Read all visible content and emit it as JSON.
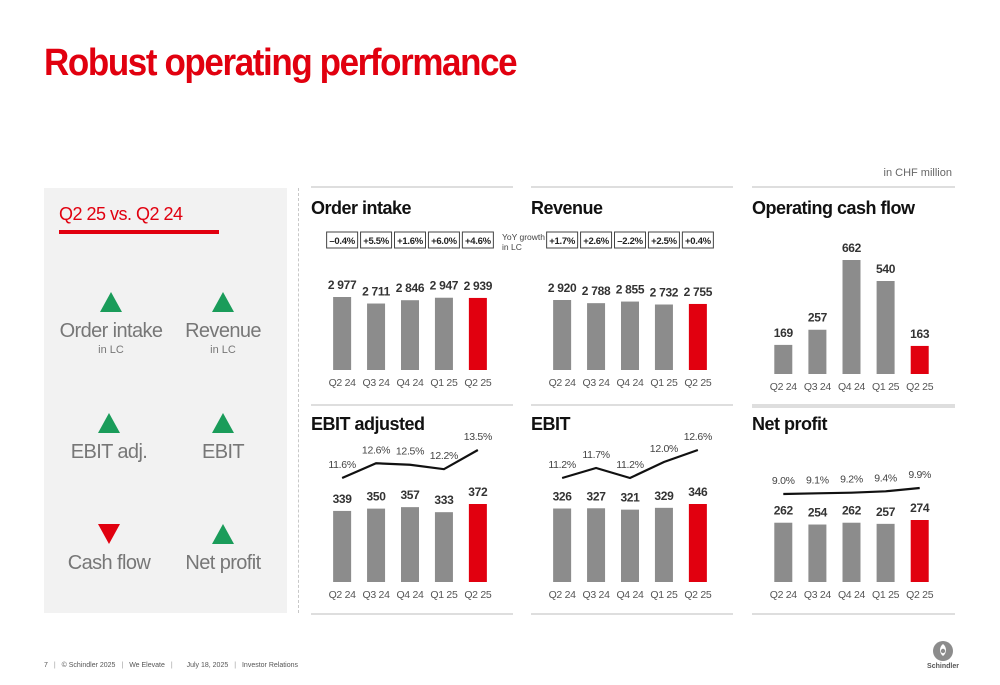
{
  "page": {
    "title": "Robust operating performance",
    "unit": "in CHF million",
    "footer": {
      "page_number": "7",
      "copyright": "© Schindler 2025",
      "tagline": "We Elevate",
      "date": "July 18, 2025",
      "department": "Investor Relations"
    },
    "logo_text": "Schindler"
  },
  "summary": {
    "heading": "Q2 25 vs. Q2 24",
    "kpis": [
      {
        "label": "Order intake",
        "sub": "in LC",
        "direction": "up"
      },
      {
        "label": "Revenue",
        "sub": "in LC",
        "direction": "up"
      },
      {
        "label": "EBIT adj.",
        "sub": "",
        "direction": "up"
      },
      {
        "label": "EBIT",
        "sub": "",
        "direction": "up"
      },
      {
        "label": "Cash flow",
        "sub": "",
        "direction": "down"
      },
      {
        "label": "Net profit",
        "sub": "",
        "direction": "up"
      }
    ],
    "colors": {
      "up": "#1a9c5a",
      "down": "#e1000f"
    }
  },
  "chart_data": [
    {
      "type": "bar",
      "title": "Order intake",
      "categories": [
        "Q2 24",
        "Q3 24",
        "Q4 24",
        "Q1 25",
        "Q2 25"
      ],
      "values": [
        2977,
        2711,
        2846,
        2947,
        2939
      ],
      "value_labels": [
        "2 977",
        "2 711",
        "2 846",
        "2 947",
        "2 939"
      ],
      "yoy_growth": [
        "–0.4%",
        "+5.5%",
        "+1.6%",
        "+6.0%",
        "+4.6%"
      ],
      "yoy_label": "YoY growth in LC",
      "highlight_index": 4
    },
    {
      "type": "bar",
      "title": "Revenue",
      "categories": [
        "Q2 24",
        "Q3 24",
        "Q4 24",
        "Q1 25",
        "Q2 25"
      ],
      "values": [
        2920,
        2788,
        2855,
        2732,
        2755
      ],
      "value_labels": [
        "2 920",
        "2 788",
        "2 855",
        "2 732",
        "2 755"
      ],
      "yoy_growth": [
        "+1.7%",
        "+2.6%",
        "–2.2%",
        "+2.5%",
        "+0.4%"
      ],
      "highlight_index": 4
    },
    {
      "type": "bar",
      "title": "Operating cash flow",
      "categories": [
        "Q2 24",
        "Q3 24",
        "Q4 24",
        "Q1 25",
        "Q2 25"
      ],
      "values": [
        169,
        257,
        662,
        540,
        163
      ],
      "value_labels": [
        "169",
        "257",
        "662",
        "540",
        "163"
      ],
      "highlight_index": 4
    },
    {
      "type": "bar",
      "title": "EBIT adjusted",
      "categories": [
        "Q2 24",
        "Q3 24",
        "Q4 24",
        "Q1 25",
        "Q2 25"
      ],
      "values": [
        339,
        350,
        357,
        333,
        372
      ],
      "value_labels": [
        "339",
        "350",
        "357",
        "333",
        "372"
      ],
      "margins": [
        11.6,
        12.6,
        12.5,
        12.2,
        13.5
      ],
      "margin_labels": [
        "11.6%",
        "12.6%",
        "12.5%",
        "12.2%",
        "13.5%"
      ],
      "highlight_index": 4
    },
    {
      "type": "bar",
      "title": "EBIT",
      "categories": [
        "Q2 24",
        "Q3 24",
        "Q4 24",
        "Q1 25",
        "Q2 25"
      ],
      "values": [
        326,
        327,
        321,
        329,
        346
      ],
      "value_labels": [
        "326",
        "327",
        "321",
        "329",
        "346"
      ],
      "margins": [
        11.2,
        11.7,
        11.2,
        12.0,
        12.6
      ],
      "margin_labels": [
        "11.2%",
        "11.7%",
        "11.2%",
        "12.0%",
        "12.6%"
      ],
      "highlight_index": 4
    },
    {
      "type": "bar",
      "title": "Net profit",
      "categories": [
        "Q2 24",
        "Q3 24",
        "Q4 24",
        "Q1 25",
        "Q2 25"
      ],
      "values": [
        262,
        254,
        262,
        257,
        274
      ],
      "value_labels": [
        "262",
        "254",
        "262",
        "257",
        "274"
      ],
      "margins": [
        9.0,
        9.1,
        9.2,
        9.4,
        9.9
      ],
      "margin_labels": [
        "9.0%",
        "9.1%",
        "9.2%",
        "9.4%",
        "9.9%"
      ],
      "highlight_index": 4
    }
  ],
  "colors": {
    "bar": "#8c8c8c",
    "highlight": "#e1000f",
    "title": "#e1000f",
    "line": "#111111"
  }
}
